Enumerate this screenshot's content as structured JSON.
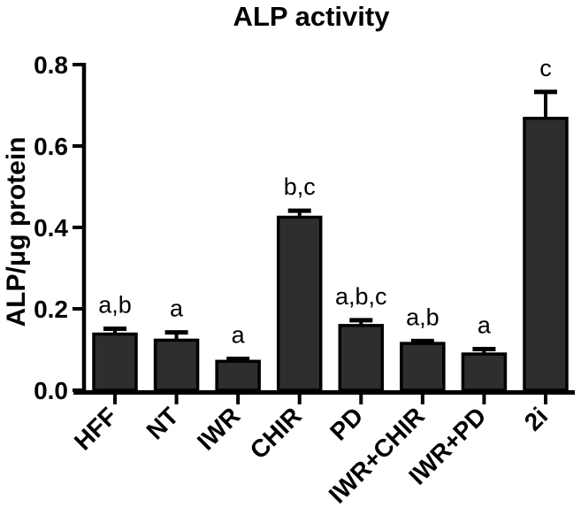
{
  "chart_data": {
    "type": "bar",
    "title": "ALP activity",
    "xlabel": "",
    "ylabel": "ALP/μg protein",
    "ylim": [
      0,
      0.8
    ],
    "yticks": [
      0.0,
      0.2,
      0.4,
      0.6,
      0.8
    ],
    "ytick_labels": [
      "0.0",
      "0.2",
      "0.4",
      "0.6",
      "0.8"
    ],
    "grid": false,
    "legend": null,
    "categories": [
      "HFF",
      "NT",
      "IWR",
      "CHIR",
      "PD",
      "IWR+CHIR",
      "IWR+PD",
      "2i"
    ],
    "values": [
      0.138,
      0.123,
      0.071,
      0.425,
      0.159,
      0.115,
      0.089,
      0.668
    ],
    "errors": [
      0.013,
      0.019,
      0.006,
      0.016,
      0.013,
      0.006,
      0.012,
      0.065
    ],
    "annotations": [
      "a,b",
      "a",
      "a",
      "b,c",
      "a,b,c",
      "a,b",
      "a",
      "c"
    ],
    "bar_color": "#2e2e2e",
    "bar_edge_color": "#000000",
    "axis_color": "#000000",
    "background_color": "#ffffff"
  }
}
